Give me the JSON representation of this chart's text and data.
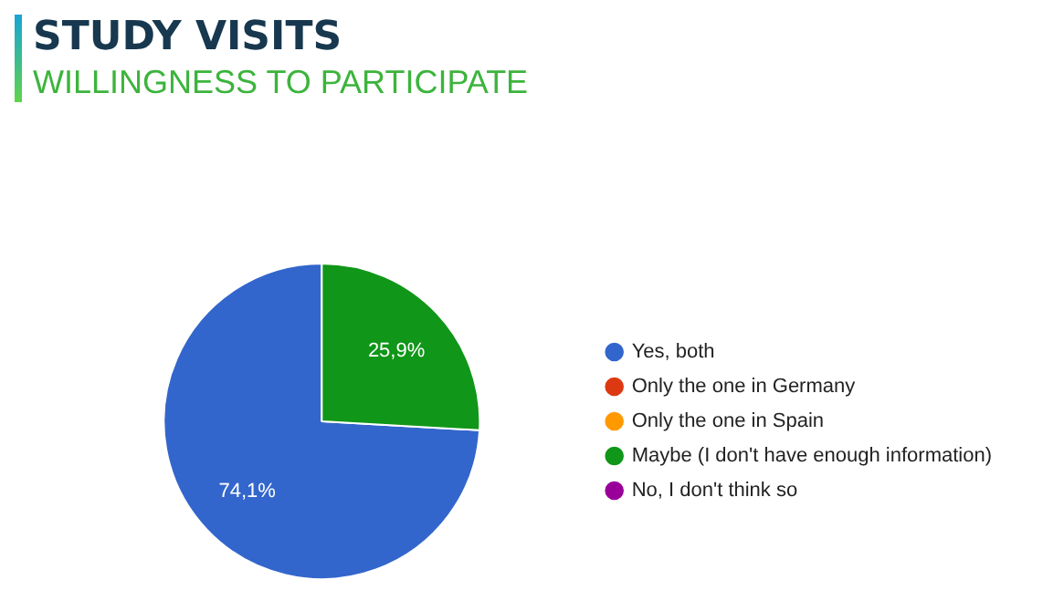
{
  "chart_data": {
    "type": "pie",
    "title": "STUDY VISITS",
    "subtitle": "WILLINGNESS TO PARTICIPATE",
    "categories": [
      "Yes, both",
      "Only the one in Germany",
      "Only the one in Spain",
      "Maybe (I don't have enough information)",
      "No, I don't think so"
    ],
    "values": [
      74.1,
      0,
      0,
      25.9,
      0
    ],
    "colors": [
      "#3366cc",
      "#dc3912",
      "#ff9900",
      "#109618",
      "#990099"
    ],
    "value_labels": [
      "74,1%",
      null,
      null,
      "25,9%",
      null
    ],
    "legend": "right"
  }
}
